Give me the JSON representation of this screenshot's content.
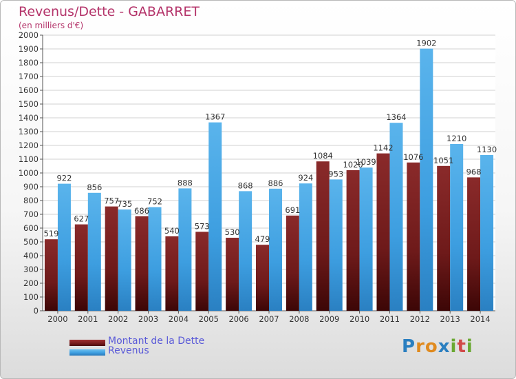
{
  "header": {
    "title": "Revenus/Dette - GABARRET",
    "subtitle": "(en milliers d'€)"
  },
  "legend": {
    "items": [
      {
        "label": "Montant de la Dette",
        "color": "#7a1e1e"
      },
      {
        "label": "Revenus",
        "color": "#3d9ee0"
      }
    ]
  },
  "logo": {
    "letters": [
      "P",
      "r",
      "o",
      "x",
      "i",
      "t",
      "i"
    ],
    "colors": [
      "#2a7fc0",
      "#e08a1e",
      "#e08a1e",
      "#2a7fc0",
      "#6aa832",
      "#d14848",
      "#6aa832"
    ]
  },
  "chart_data": {
    "type": "bar",
    "categories": [
      "2000",
      "2001",
      "2002",
      "2003",
      "2004",
      "2005",
      "2006",
      "2007",
      "2008",
      "2009",
      "2010",
      "2011",
      "2012",
      "2013",
      "2014"
    ],
    "series": [
      {
        "name": "Montant de la Dette",
        "color": "#7a1e1e",
        "values": [
          519,
          627,
          757,
          686,
          540,
          573,
          530,
          479,
          691,
          1084,
          1020,
          1142,
          1076,
          1051,
          968
        ],
        "labels": [
          "519",
          "627",
          "757",
          "686",
          "540",
          "573",
          "530",
          "479",
          "691",
          "1084",
          "1020",
          "1142",
          "1076",
          "1051",
          "968"
        ]
      },
      {
        "name": "Revenus",
        "color": "#3d9ee0",
        "values": [
          922,
          856,
          735,
          752,
          888,
          1367,
          868,
          886,
          924,
          953,
          1039,
          1364,
          1902,
          1210,
          1130
        ],
        "labels": [
          "922",
          "856",
          "735",
          "752",
          "888",
          "1367",
          "868",
          "886",
          "924",
          "953",
          "1039",
          "1364",
          "1902",
          "1210",
          "1130"
        ]
      }
    ],
    "ylim": [
      0,
      2000
    ],
    "yticks": [
      0,
      100,
      200,
      300,
      400,
      500,
      600,
      700,
      800,
      900,
      1000,
      1100,
      1200,
      1300,
      1400,
      1500,
      1600,
      1700,
      1800,
      1900,
      2000
    ],
    "grid": true,
    "legend_position": "bottom-left"
  }
}
